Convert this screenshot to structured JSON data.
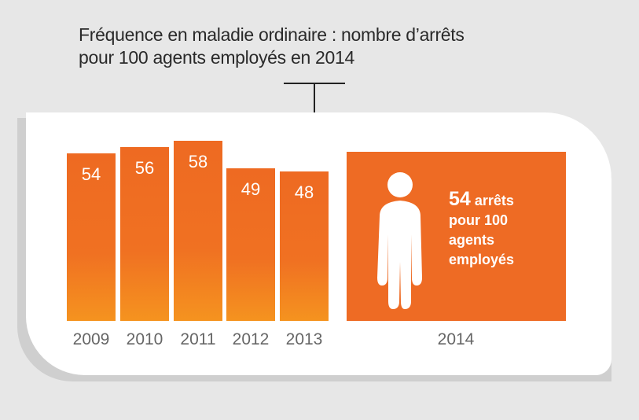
{
  "chart_data": {
    "type": "bar",
    "title": "Fréquence en maladie ordinaire : nombre d’arrêts pour 100 agents employés en 2014",
    "title_lines": [
      "Fréquence en maladie ordinaire : nombre d’arrêts",
      "pour 100 agents employés en 2014"
    ],
    "categories": [
      "2009",
      "2010",
      "2011",
      "2012",
      "2013"
    ],
    "values": [
      54,
      56,
      58,
      49,
      48
    ],
    "value_labels": [
      "54",
      "56",
      "58",
      "49",
      "48"
    ],
    "xlabel": "",
    "ylabel": "",
    "ylim": [
      0,
      58
    ],
    "highlight": {
      "year": "2014",
      "value": "54",
      "text_lines": [
        "arrêts",
        "pour 100",
        "agents",
        "employés"
      ],
      "icon": "person-icon"
    },
    "colors": {
      "bar_top": "#ee6a22",
      "bar_bottom": "#f5931f",
      "panel": "#ee6b24"
    }
  }
}
